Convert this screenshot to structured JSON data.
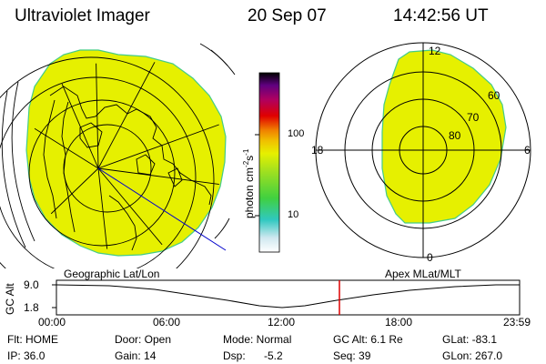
{
  "header": {
    "title": "Ultraviolet Imager",
    "date": "20 Sep 07",
    "time": "14:42:56 UT"
  },
  "colorbar": {
    "unit_label": "photon cm",
    "unit_exp1": "-2",
    "unit_mid": "s",
    "unit_exp2": "-1",
    "ticks": [
      "100",
      "10"
    ]
  },
  "polar_plot": {
    "mlt_labels": {
      "top": "12",
      "left": "18",
      "right": "6",
      "bottom": "0"
    },
    "lat_labels": [
      "60",
      "70",
      "80"
    ]
  },
  "left_plot_label": "Geographic Lat/Lon",
  "right_plot_label": "Apex MLat/MLT",
  "altitude_panel": {
    "ylabel": "GC Alt",
    "yticks": [
      "9.0",
      "1.8"
    ],
    "xticks": [
      "00:00",
      "06:00",
      "12:00",
      "18:00",
      "23:59"
    ],
    "current_time_marker_hours": 14.716
  },
  "status": {
    "flt": "Flt: HOME",
    "ip": "IP: 36.0",
    "door": "Door: Open",
    "gain": "Gain: 14",
    "mode": "Mode: Normal",
    "dsp_label": "Dsp:",
    "dsp_value": "-5.2",
    "gcalt": "GC Alt: 6.1 Re",
    "seq": "Seq: 39",
    "glat": "GLat: -83.1",
    "glon": "GLon: 267.0"
  },
  "colors": {
    "fill": "#e6f000",
    "edge": "#44cc88",
    "marker": "#dd0000",
    "line": "#0000cc"
  }
}
